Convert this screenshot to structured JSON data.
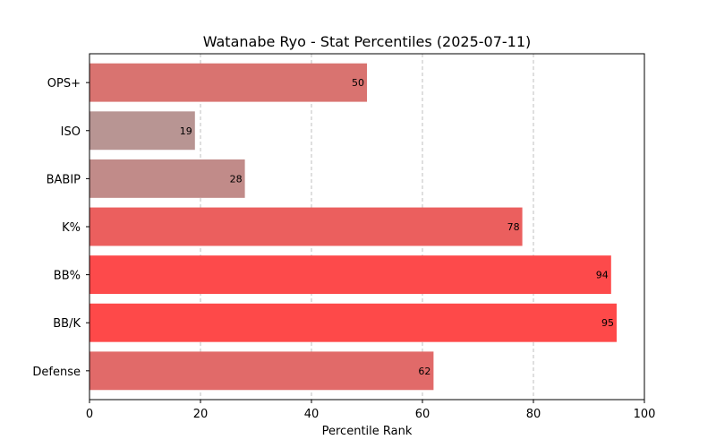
{
  "chart_data": {
    "type": "bar",
    "orientation": "horizontal",
    "title": "Watanabe Ryo - Stat Percentiles (2025-07-11)",
    "xlabel": "Percentile Rank",
    "ylabel": "",
    "xlim": [
      0,
      100
    ],
    "xticks": [
      0,
      20,
      40,
      60,
      80,
      100
    ],
    "grid": "x-dashed",
    "categories": [
      "OPS+",
      "ISO",
      "BABIP",
      "K%",
      "BB%",
      "BB/K",
      "Defense"
    ],
    "values": [
      50,
      19,
      28,
      78,
      94,
      95,
      62
    ],
    "colors": [
      "#d97370",
      "#b89593",
      "#c18b89",
      "#eb5f5e",
      "#fd4a4b",
      "#fe4949",
      "#e16a69"
    ]
  }
}
